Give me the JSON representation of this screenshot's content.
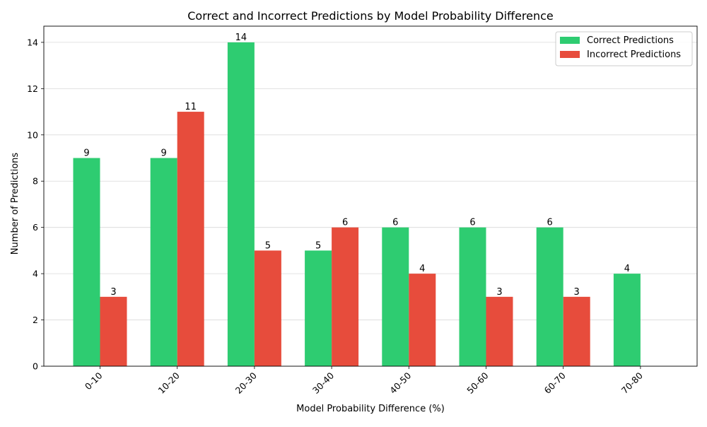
{
  "chart_data": {
    "type": "bar",
    "title": "Correct and Incorrect Predictions by Model Probability Difference",
    "xlabel": "Model Probability Difference (%)",
    "ylabel": "Number of Predictions",
    "categories": [
      "0-10",
      "10-20",
      "20-30",
      "30-40",
      "40-50",
      "50-60",
      "60-70",
      "70-80"
    ],
    "series": [
      {
        "name": "Correct Predictions",
        "values": [
          9,
          9,
          14,
          5,
          6,
          6,
          6,
          4
        ],
        "color": "#2ecc71"
      },
      {
        "name": "Incorrect Predictions",
        "values": [
          3,
          11,
          5,
          6,
          4,
          3,
          3,
          0
        ],
        "color": "#e74c3c"
      }
    ],
    "ylim": [
      0,
      14.7
    ],
    "yticks": [
      0,
      2,
      4,
      6,
      8,
      10,
      12,
      14
    ],
    "grid": "y",
    "legend": "top-right",
    "xtick_rotation": 45,
    "data_labels": true
  }
}
